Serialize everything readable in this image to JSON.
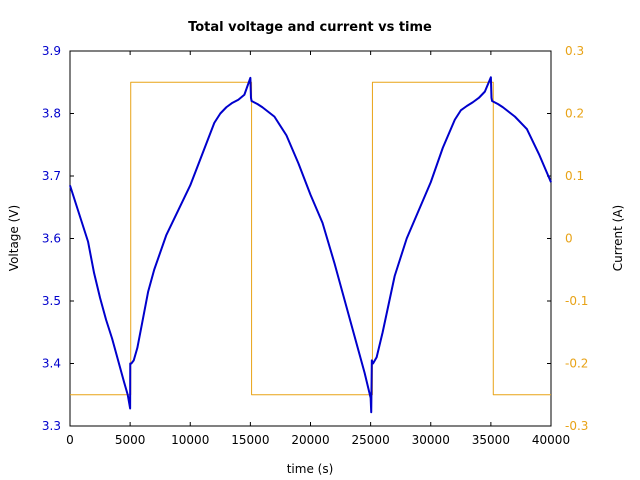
{
  "chart_data": {
    "type": "line",
    "title": "Total voltage and current vs time",
    "xlabel": "time (s)",
    "ylabel": "Voltage (V)",
    "y2label": "Current (A)",
    "xlim": [
      0,
      40000
    ],
    "ylim": [
      3.3,
      3.9
    ],
    "y2lim": [
      -0.3,
      0.3
    ],
    "x_ticks": [
      "0",
      "5000",
      "10000",
      "15000",
      "20000",
      "25000",
      "30000",
      "35000",
      "40000"
    ],
    "y_ticks": [
      "3.3",
      "3.4",
      "3.5",
      "3.6",
      "3.7",
      "3.8",
      "3.9"
    ],
    "y2_ticks": [
      "-0.3",
      "-0.2",
      "-0.1",
      "0",
      "0.1",
      "0.2",
      "0.3"
    ],
    "grid": false,
    "colors": {
      "voltage": "#0000cc",
      "current": "#e8a317"
    },
    "series": [
      {
        "axis": "left",
        "x": [
          0,
          500,
          1000,
          1500,
          2000,
          2500,
          3000,
          3500,
          4000,
          4500,
          4800,
          5000,
          5010,
          5100,
          5300,
          5600,
          6000,
          6500,
          7000,
          8000,
          9000,
          10000,
          11000,
          12000,
          12500,
          13000,
          13500,
          14000,
          14500,
          15000,
          15050,
          15100,
          15300,
          15600,
          16000,
          17000,
          18000,
          19000,
          20000,
          21000,
          22000,
          23000,
          24000,
          24500,
          25000,
          25050,
          25100,
          25200,
          25500,
          26000,
          26500,
          27000,
          28000,
          29000,
          30000,
          31000,
          32000,
          32500,
          33000,
          33500,
          34000,
          34500,
          35000,
          35050,
          35100,
          35300,
          35600,
          36000,
          37000,
          38000,
          39000,
          40000
        ],
        "y": [
          3.685,
          3.655,
          3.625,
          3.595,
          3.545,
          3.505,
          3.47,
          3.44,
          3.405,
          3.37,
          3.35,
          3.328,
          3.4,
          3.4,
          3.405,
          3.425,
          3.465,
          3.515,
          3.55,
          3.605,
          3.645,
          3.685,
          3.735,
          3.785,
          3.8,
          3.81,
          3.817,
          3.822,
          3.83,
          3.857,
          3.825,
          3.82,
          3.818,
          3.815,
          3.81,
          3.795,
          3.765,
          3.72,
          3.67,
          3.625,
          3.56,
          3.49,
          3.42,
          3.385,
          3.345,
          3.322,
          3.405,
          3.4,
          3.41,
          3.45,
          3.495,
          3.54,
          3.6,
          3.645,
          3.69,
          3.745,
          3.79,
          3.805,
          3.812,
          3.818,
          3.825,
          3.835,
          3.858,
          3.825,
          3.82,
          3.818,
          3.815,
          3.81,
          3.795,
          3.775,
          3.735,
          3.69
        ]
      },
      {
        "axis": "right",
        "x": [
          0,
          5050,
          5050,
          15100,
          15100,
          25150,
          25150,
          35200,
          35200,
          40000
        ],
        "y": [
          -0.25,
          -0.25,
          0.25,
          0.25,
          -0.25,
          -0.25,
          0.25,
          0.25,
          -0.25,
          -0.25
        ]
      }
    ]
  }
}
